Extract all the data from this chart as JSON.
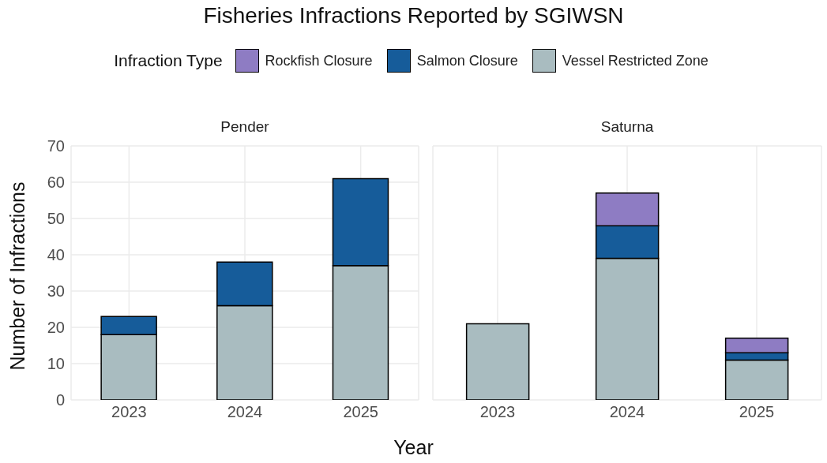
{
  "chart_data": [
    {
      "type": "bar",
      "title": "Fisheries Infractions Reported by SGIWSN",
      "subtitle": "Pender",
      "legend_title": "Infraction Type",
      "legend": "top",
      "xlabel": "Year",
      "ylabel": "Number of Infractions",
      "categories": [
        "2023",
        "2024",
        "2025"
      ],
      "stacked": true,
      "grid": true,
      "ylim": [
        0,
        70
      ],
      "yticks": [
        0,
        10,
        20,
        30,
        40,
        50,
        60,
        70
      ],
      "series": [
        {
          "name": "Vessel Restricted Zone",
          "color": "#a9bcc0",
          "values": [
            18,
            26,
            37
          ]
        },
        {
          "name": "Salmon Closure",
          "color": "#165c9a",
          "values": [
            5,
            12,
            24
          ]
        },
        {
          "name": "Rockfish Closure",
          "color": "#8e7cc3",
          "values": [
            null,
            null,
            null
          ]
        }
      ]
    },
    {
      "type": "bar",
      "subtitle": "Saturna",
      "categories": [
        "2023",
        "2024",
        "2025"
      ],
      "stacked": true,
      "grid": true,
      "ylim": [
        0,
        70
      ],
      "yticks": [
        0,
        10,
        20,
        30,
        40,
        50,
        60,
        70
      ],
      "tick_labels": "x",
      "series": [
        {
          "color": "#a9bcc0",
          "values": [
            21,
            39,
            11
          ]
        },
        {
          "color": "#165c9a",
          "values": [
            null,
            9,
            2
          ]
        },
        {
          "color": "#8e7cc3",
          "values": [
            null,
            9,
            4
          ]
        }
      ]
    }
  ]
}
